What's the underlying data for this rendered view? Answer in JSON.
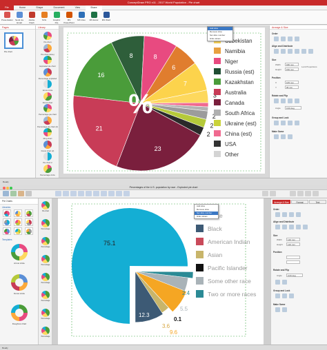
{
  "window1": {
    "title": "ConceptDraw PRO v11 - 2017 World Population - Pie chart",
    "menu": [
      "File",
      "Home",
      "Shape",
      "Document",
      "View",
      "Share"
    ],
    "ribbon": [
      "Presentation",
      "Send via Email",
      "Adobe Flash",
      "SVG",
      "Graphic File",
      "MS PowerPoint",
      "MS Visio",
      "MS Excel",
      "MS Word"
    ],
    "pages_label": "Pages",
    "page_name": "Pie chart",
    "library_label": "Library",
    "library_items": [
      "Pie chart",
      "Pie chart (slice)",
      "Exploded pie chart",
      "Percentage exploded pie",
      "Arrow circle",
      "Donut chart",
      "Percentage pie chart",
      "Percentage pie chart (2)",
      "Ring chart",
      "Donut chart (2)",
      "Pie chart 2",
      "Percentage circle"
    ],
    "context_menu": [
      "Add slice",
      "Remove slice",
      "Set slice number",
      "Hide values"
    ],
    "panel": {
      "tabs": [
        "Arrange & Size"
      ],
      "sections": [
        "Order",
        "Align and Distribute",
        "Size",
        "Position",
        "Rotate and Flip",
        "Group and Lock",
        "Make Same"
      ],
      "size_labels": [
        "Width",
        "Height"
      ],
      "size_values": [
        "180 mm",
        "150 mm"
      ],
      "lock_label": "Lock Proportions",
      "position_labels": [
        "X",
        "Y"
      ],
      "position_values": [
        "105 mm",
        "95 mm"
      ],
      "angle_label": "Angle",
      "angle_value": "0.00 deg"
    },
    "status": "Ready"
  },
  "window2": {
    "title": "Percentages of the U.S. population by race - Exploded pie chart",
    "left_label": "Pie Charts",
    "library_label": "Libraries",
    "templates_label": "Templates",
    "templates": [
      "Arrow circle",
      "Donut circle",
      "Doughnut chart"
    ],
    "library_items": [
      "Pie chart",
      "Percentage",
      "Percentage",
      "Percentage",
      "Percentage",
      "Percentage",
      "Percentage",
      "Percentage"
    ],
    "context_menu": [
      "Add slice",
      "Remove slice",
      "Set slice number",
      "Hide values"
    ],
    "panel_tabs": [
      "Arrange & Size",
      "Format",
      "Text"
    ],
    "panel_sections": [
      "Order",
      "Align and Distribute",
      "Size",
      "Position",
      "Rotate and Flip",
      "Group and Lock",
      "Make Same"
    ],
    "size_labels": [
      "Width",
      "Height"
    ],
    "size_values": [
      "140 mm",
      "120 mm"
    ],
    "angle_label": "Angle",
    "angle_value": "0.00 deg",
    "status": "Ready"
  },
  "chart_data": [
    {
      "type": "pie",
      "center_label": "%",
      "slices": [
        {
          "label": "Uzbekistan",
          "value": 3,
          "color": "#fdd85d",
          "show_value": true
        },
        {
          "label": "Namibia",
          "value": 5,
          "color": "#fda93a",
          "show_value": true
        },
        {
          "label": "Niger",
          "value": 6,
          "color": "#e07d2e",
          "show_value": true
        },
        {
          "label": "Russia (est)",
          "value": 7,
          "color": "#fcd34c",
          "show_value": true
        },
        {
          "label": "Kazakhstan",
          "value": 8,
          "color": "#e84a80",
          "show_value": true
        },
        {
          "label": "Australia",
          "value": 8,
          "color": "#2e5e3a",
          "show_value": true
        },
        {
          "label": "Canada",
          "value": 16,
          "color": "#4a9c3a",
          "show_value": true
        },
        {
          "label": "South Africa",
          "value": 21,
          "color": "#c83c57",
          "show_value": true
        },
        {
          "label": "Ukraine (est)",
          "value": 23,
          "color": "#7a1f3d",
          "show_value": true
        },
        {
          "label": "China (est)",
          "value": 2,
          "color": "#9c9c9c",
          "show_value": true
        },
        {
          "label": "USA",
          "value": 2,
          "color": "#2a2a2a",
          "show_value": true
        },
        {
          "label": "Other",
          "value": 2,
          "color": "#b5c93a",
          "show_value": true
        }
      ],
      "extra_slices": [
        {
          "value": 1,
          "color": "#f06a90"
        },
        {
          "value": 1,
          "color": "#b3b3b3"
        }
      ],
      "legend": [
        {
          "label": "Uzbekistan",
          "color": "#fdd85d"
        },
        {
          "label": "Namibia",
          "color": "#e8a040"
        },
        {
          "label": "Niger",
          "color": "#e84a80"
        },
        {
          "label": "Russia (est)",
          "color": "#1f4d33"
        },
        {
          "label": "Kazakhstan",
          "color": "#4a9c3a"
        },
        {
          "label": "Australia",
          "color": "#c83c57"
        },
        {
          "label": "Canada",
          "color": "#7a1f3d"
        },
        {
          "label": "South Africa",
          "color": "#b0b0b0"
        },
        {
          "label": "Ukraine (est)",
          "color": "#c9d23a"
        },
        {
          "label": "China (est)",
          "color": "#f06a90"
        },
        {
          "label": "USA",
          "color": "#333333"
        },
        {
          "label": "Other",
          "color": "#d4d4d4"
        }
      ]
    },
    {
      "type": "pie",
      "exploded_label_values": [
        "75.1",
        "12.3",
        "0.1",
        "3.6",
        "9.6",
        "5.5",
        "2.4"
      ],
      "main": {
        "value": 75.1,
        "color": "#14aed4"
      },
      "small_slices": [
        {
          "value": 12.3,
          "color": "#3d5a75",
          "label": "12.3"
        },
        {
          "value": 3.6,
          "color": "#c8b56a",
          "label": "3.6"
        },
        {
          "value": 0.1,
          "color": "#111111",
          "label": "0.1"
        },
        {
          "value": 9.6,
          "color": "#f5a623",
          "label": "9.6"
        },
        {
          "value": 5.5,
          "color": "#a9b3b8",
          "label": "5.5"
        },
        {
          "value": 2.4,
          "color": "#2b8a95",
          "label": "2.4"
        }
      ],
      "legend": [
        {
          "label": "White",
          "color": "#14aed4"
        },
        {
          "label": "Black",
          "color": "#3d5a75"
        },
        {
          "label": "American Indian",
          "color": "#c94a5a"
        },
        {
          "label": "Asian",
          "color": "#c8b56a"
        },
        {
          "label": "Pacific Islander",
          "color": "#111111"
        },
        {
          "label": "Some other race",
          "color": "#a9b3b8"
        },
        {
          "label": "Two or more races",
          "color": "#2b8a95"
        }
      ]
    }
  ]
}
